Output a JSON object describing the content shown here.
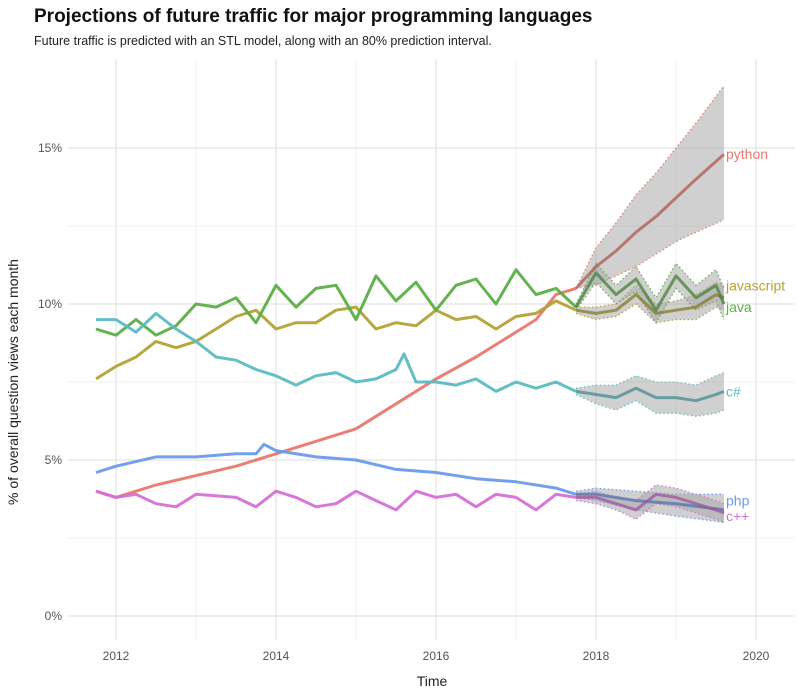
{
  "chart_data": {
    "type": "line",
    "title": "Projections of future traffic for major programming languages",
    "subtitle": "Future traffic is predicted with an STL model, along with an 80% prediction interval.",
    "xlabel": "Time",
    "ylabel": "% of overall question views each month",
    "xlim": [
      2011.3,
      2020.5
    ],
    "ylim": [
      -0.8,
      17.5
    ],
    "x_ticks": [
      "2012",
      "2014",
      "2016",
      "2018",
      "2020"
    ],
    "x_tick_values": [
      2012,
      2014,
      2016,
      2018,
      2020
    ],
    "y_ticks": [
      "0%",
      "5%",
      "10%",
      "15%"
    ],
    "y_tick_values": [
      0,
      5,
      10,
      15
    ],
    "grid": true,
    "legend": "direct labels at right",
    "band_color": "#a9a9a9",
    "series": [
      {
        "name": "python",
        "color": "#e8786e",
        "x": [
          2011.75,
          2012,
          2012.5,
          2013,
          2013.5,
          2014,
          2014.5,
          2015,
          2015.5,
          2016,
          2016.5,
          2017,
          2017.25,
          2017.5,
          2017.75
        ],
        "y": [
          4.0,
          3.8,
          4.2,
          4.5,
          4.8,
          5.2,
          5.6,
          6.0,
          6.8,
          7.6,
          8.3,
          9.1,
          9.5,
          10.3,
          10.5
        ],
        "forecast": {
          "x": [
            2017.75,
            2018,
            2018.25,
            2018.5,
            2018.75,
            2019,
            2019.25,
            2019.6
          ],
          "mean": [
            10.5,
            11.2,
            11.7,
            12.3,
            12.8,
            13.4,
            14.0,
            14.8
          ],
          "lower": [
            10.5,
            10.6,
            10.9,
            11.2,
            11.6,
            12.0,
            12.3,
            12.7
          ],
          "upper": [
            10.5,
            11.8,
            12.6,
            13.5,
            14.2,
            15.0,
            15.8,
            17.0
          ]
        }
      },
      {
        "name": "javascript",
        "color": "#b3a236",
        "x": [
          2011.75,
          2012,
          2012.25,
          2012.5,
          2012.75,
          2013,
          2013.25,
          2013.5,
          2013.75,
          2014,
          2014.25,
          2014.5,
          2014.75,
          2015,
          2015.25,
          2015.5,
          2015.75,
          2016,
          2016.25,
          2016.5,
          2016.75,
          2017,
          2017.25,
          2017.5,
          2017.75
        ],
        "y": [
          7.6,
          8.0,
          8.3,
          8.8,
          8.6,
          8.8,
          9.2,
          9.6,
          9.8,
          9.2,
          9.4,
          9.4,
          9.8,
          9.9,
          9.2,
          9.4,
          9.3,
          9.8,
          9.5,
          9.6,
          9.2,
          9.6,
          9.7,
          10.1,
          9.8
        ],
        "forecast": {
          "x": [
            2017.75,
            2018,
            2018.25,
            2018.5,
            2018.75,
            2019,
            2019.25,
            2019.5,
            2019.6
          ],
          "mean": [
            9.8,
            9.7,
            9.8,
            10.3,
            9.7,
            9.8,
            9.9,
            10.3,
            10.2
          ],
          "lower": [
            9.7,
            9.5,
            9.6,
            10.0,
            9.4,
            9.5,
            9.5,
            9.9,
            9.8
          ],
          "upper": [
            9.9,
            9.9,
            10.0,
            10.6,
            10.0,
            10.1,
            10.3,
            10.7,
            10.6
          ]
        }
      },
      {
        "name": "java",
        "color": "#5cae47",
        "x": [
          2011.75,
          2012,
          2012.25,
          2012.5,
          2012.75,
          2013,
          2013.25,
          2013.5,
          2013.75,
          2014,
          2014.25,
          2014.5,
          2014.75,
          2015,
          2015.25,
          2015.5,
          2015.75,
          2016,
          2016.25,
          2016.5,
          2016.75,
          2017,
          2017.25,
          2017.5,
          2017.75
        ],
        "y": [
          9.2,
          9.0,
          9.5,
          9.0,
          9.3,
          10.0,
          9.9,
          10.2,
          9.4,
          10.6,
          9.9,
          10.5,
          10.6,
          9.5,
          10.9,
          10.1,
          10.7,
          9.8,
          10.6,
          10.8,
          10.0,
          11.1,
          10.3,
          10.5,
          9.9
        ],
        "forecast": {
          "x": [
            2017.75,
            2018,
            2018.25,
            2018.5,
            2018.75,
            2019,
            2019.25,
            2019.5,
            2019.6
          ],
          "mean": [
            9.9,
            11.0,
            10.3,
            10.8,
            9.8,
            10.9,
            10.2,
            10.6,
            10.0
          ],
          "lower": [
            9.8,
            10.7,
            10.0,
            10.4,
            9.4,
            10.5,
            9.8,
            10.1,
            9.5
          ],
          "upper": [
            10.0,
            11.3,
            10.6,
            11.2,
            10.2,
            11.3,
            10.6,
            11.1,
            10.5
          ]
        }
      },
      {
        "name": "c#",
        "color": "#5bbcc1",
        "x": [
          2011.75,
          2012,
          2012.25,
          2012.5,
          2012.75,
          2013,
          2013.25,
          2013.5,
          2013.75,
          2014,
          2014.25,
          2014.5,
          2014.75,
          2015,
          2015.25,
          2015.5,
          2015.6,
          2015.75,
          2016,
          2016.25,
          2016.5,
          2016.75,
          2017,
          2017.25,
          2017.5,
          2017.75
        ],
        "y": [
          9.5,
          9.5,
          9.1,
          9.7,
          9.2,
          8.8,
          8.3,
          8.2,
          7.9,
          7.7,
          7.4,
          7.7,
          7.8,
          7.5,
          7.6,
          7.9,
          8.4,
          7.5,
          7.5,
          7.4,
          7.6,
          7.2,
          7.5,
          7.3,
          7.5,
          7.2
        ],
        "forecast": {
          "x": [
            2017.75,
            2018,
            2018.25,
            2018.5,
            2018.75,
            2019,
            2019.25,
            2019.5,
            2019.6
          ],
          "mean": [
            7.2,
            7.1,
            7.0,
            7.3,
            7.0,
            7.0,
            6.9,
            7.1,
            7.2
          ],
          "lower": [
            7.1,
            6.8,
            6.6,
            6.9,
            6.5,
            6.5,
            6.4,
            6.5,
            6.6
          ],
          "upper": [
            7.3,
            7.4,
            7.4,
            7.7,
            7.5,
            7.5,
            7.4,
            7.7,
            7.8
          ]
        }
      },
      {
        "name": "php",
        "color": "#6b9bea",
        "x": [
          2011.75,
          2012,
          2012.5,
          2013,
          2013.5,
          2013.75,
          2013.85,
          2014,
          2014.5,
          2015,
          2015.5,
          2016,
          2016.5,
          2017,
          2017.5,
          2017.75
        ],
        "y": [
          4.6,
          4.8,
          5.1,
          5.1,
          5.2,
          5.2,
          5.5,
          5.3,
          5.1,
          5.0,
          4.7,
          4.6,
          4.4,
          4.3,
          4.1,
          3.9
        ],
        "forecast": {
          "x": [
            2017.75,
            2018,
            2018.5,
            2019,
            2019.6
          ],
          "mean": [
            3.9,
            3.9,
            3.7,
            3.6,
            3.4
          ],
          "lower": [
            3.8,
            3.7,
            3.4,
            3.2,
            3.0
          ],
          "upper": [
            4.0,
            4.1,
            4.0,
            3.9,
            3.9
          ]
        }
      },
      {
        "name": "c++",
        "color": "#d570d6",
        "x": [
          2011.75,
          2012,
          2012.25,
          2012.5,
          2012.75,
          2013,
          2013.5,
          2013.75,
          2014,
          2014.25,
          2014.5,
          2014.75,
          2015,
          2015.25,
          2015.5,
          2015.75,
          2016,
          2016.25,
          2016.5,
          2016.75,
          2017,
          2017.25,
          2017.5,
          2017.75
        ],
        "y": [
          4.0,
          3.8,
          3.9,
          3.6,
          3.5,
          3.9,
          3.8,
          3.5,
          4.0,
          3.8,
          3.5,
          3.6,
          4.0,
          3.7,
          3.4,
          4.0,
          3.8,
          3.9,
          3.5,
          3.9,
          3.8,
          3.4,
          3.9,
          3.8
        ],
        "forecast": {
          "x": [
            2017.75,
            2018,
            2018.25,
            2018.5,
            2018.75,
            2019,
            2019.25,
            2019.5,
            2019.6
          ],
          "mean": [
            3.8,
            3.8,
            3.6,
            3.4,
            3.9,
            3.8,
            3.6,
            3.4,
            3.3
          ],
          "lower": [
            3.7,
            3.6,
            3.4,
            3.1,
            3.6,
            3.5,
            3.3,
            3.1,
            3.0
          ],
          "upper": [
            3.9,
            4.0,
            3.8,
            3.7,
            4.2,
            4.1,
            3.9,
            3.7,
            3.6
          ]
        }
      }
    ]
  }
}
